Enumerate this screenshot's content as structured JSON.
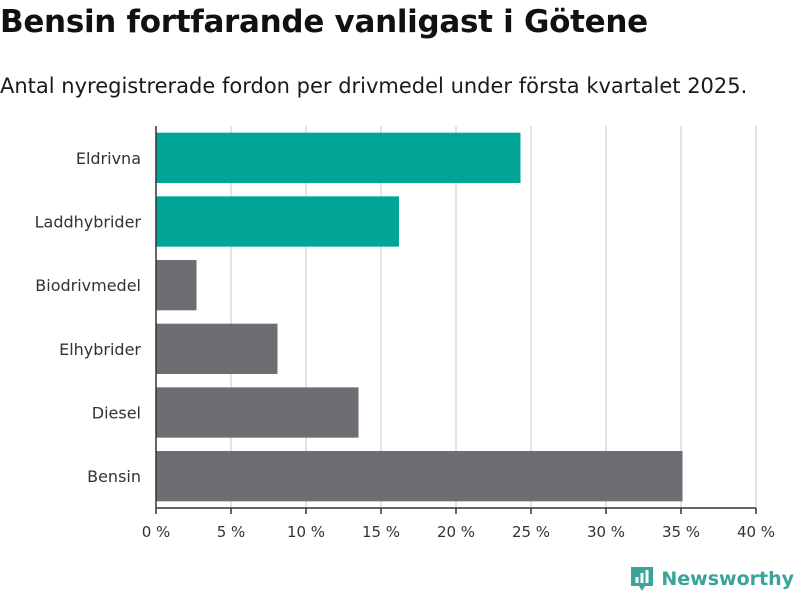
{
  "header": {
    "title": "Bensin fortfarande vanligast i Götene",
    "subtitle": "Antal nyregistrerade fordon per drivmedel under första kvartalet 2025."
  },
  "brand": {
    "name": "Newsworthy",
    "icon": "newsworthy-logo-icon"
  },
  "colors": {
    "highlight": "#00a598",
    "default": "#6e6d73",
    "grid": "#d8d8d8",
    "axis": "#333333"
  },
  "chart_data": {
    "type": "bar",
    "orientation": "horizontal",
    "categories": [
      "Eldrivna",
      "Laddhybrider",
      "Biodrivmedel",
      "Elhybrider",
      "Diesel",
      "Bensin"
    ],
    "values": [
      24.3,
      16.2,
      2.7,
      8.1,
      13.5,
      35.1
    ],
    "highlighted": [
      true,
      true,
      false,
      false,
      false,
      false
    ],
    "xlim": [
      0,
      40
    ],
    "ticks": [
      0,
      5,
      10,
      15,
      20,
      25,
      30,
      35,
      40
    ],
    "tick_labels": [
      "0 %",
      "5 %",
      "10 %",
      "15 %",
      "20 %",
      "25 %",
      "30 %",
      "35 %",
      "40 %"
    ],
    "grid": true
  }
}
